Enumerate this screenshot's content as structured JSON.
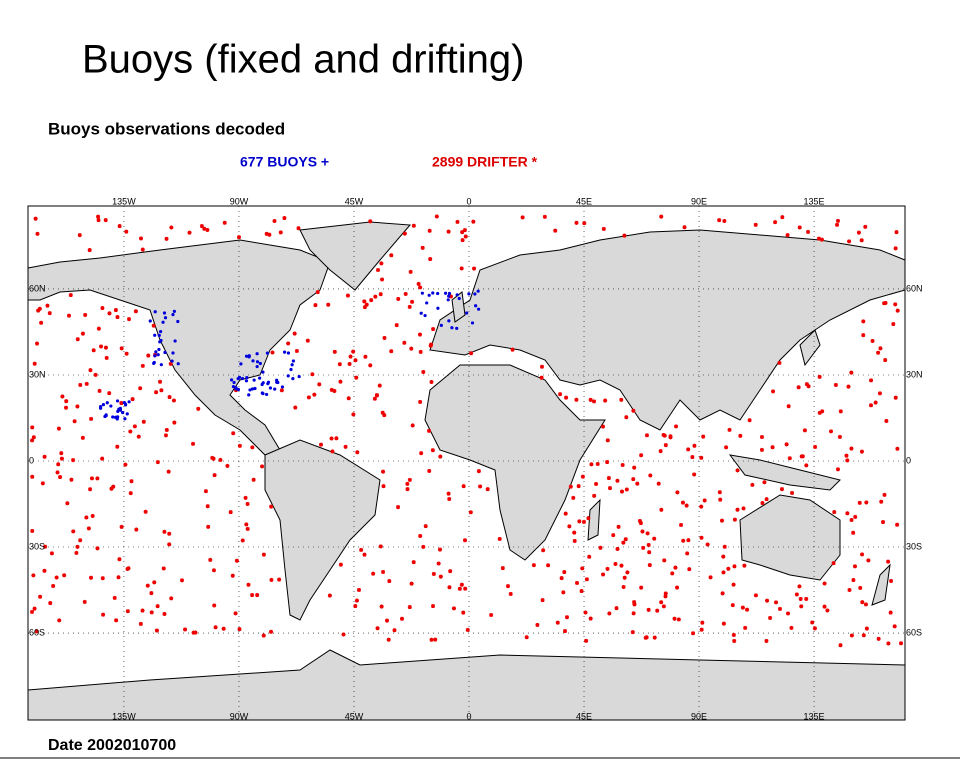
{
  "header": {
    "title": "Buoys (fixed and drifting)",
    "subtitle": "Buoys observations decoded"
  },
  "legend": {
    "buoys": "677 BUOYS +",
    "drifters": "2899 DRIFTER *"
  },
  "map": {
    "lon_ticks": [
      {
        "value": -135,
        "label": "135W"
      },
      {
        "value": -90,
        "label": "90W"
      },
      {
        "value": -45,
        "label": "45W"
      },
      0,
      {
        "value": 45,
        "label": "45E"
      },
      {
        "value": 90,
        "label": "90E"
      },
      {
        "value": 135,
        "label": "135E"
      }
    ],
    "lat_ticks": [
      {
        "value": 60,
        "label": "60N"
      },
      {
        "value": 30,
        "label": "30N"
      },
      0,
      {
        "value": -30,
        "label": "30S"
      },
      {
        "value": -60,
        "label": "60S"
      }
    ]
  },
  "footer": {
    "date": "Date 2002010700"
  }
}
